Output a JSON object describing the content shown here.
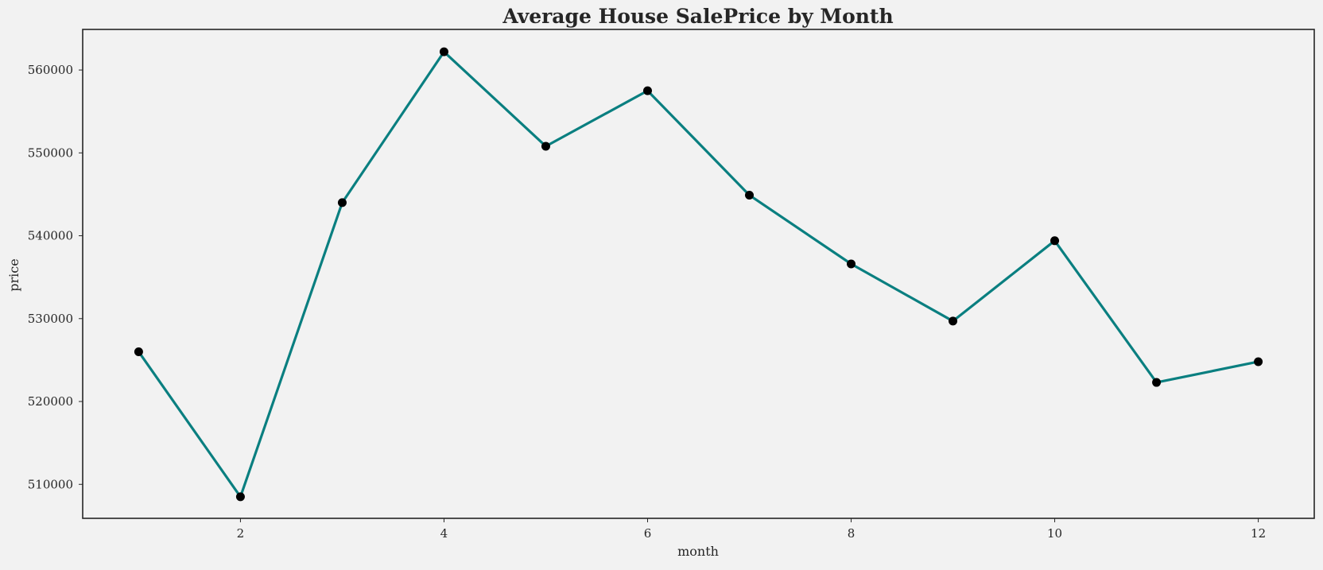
{
  "colors": {
    "background": "#f2f2f2",
    "line": "#0a7f80",
    "marker": "#000000",
    "frame": "#262626",
    "text": "#262626"
  },
  "chart_data": {
    "type": "line",
    "title": "Average House SalePrice by Month",
    "xlabel": "month",
    "ylabel": "price",
    "x": [
      1,
      2,
      3,
      4,
      5,
      6,
      7,
      8,
      9,
      10,
      11,
      12
    ],
    "series": [
      {
        "values": [
          526000,
          508500,
          544000,
          562200,
          550800,
          557500,
          544900,
          536600,
          529700,
          539400,
          522300,
          524800
        ]
      }
    ],
    "xlim": [
      0.45,
      12.55
    ],
    "ylim": [
      505900,
      564900
    ],
    "xticks": [
      2,
      4,
      6,
      8,
      10,
      12
    ],
    "yticks": [
      510000,
      520000,
      530000,
      540000,
      550000,
      560000
    ],
    "grid": false,
    "legend": "none"
  }
}
